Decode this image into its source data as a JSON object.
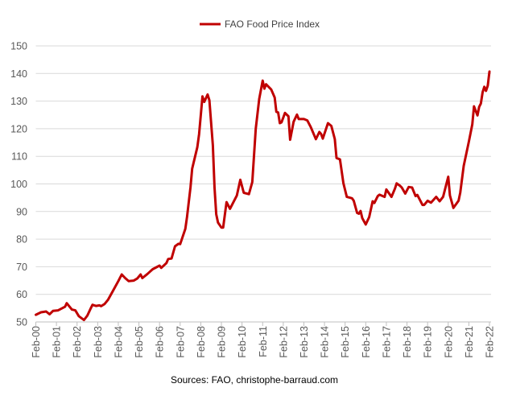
{
  "chart_data": {
    "type": "line",
    "title": "",
    "xlabel": "",
    "ylabel": "",
    "ylim": [
      50,
      150
    ],
    "yticks": [
      "50",
      "60",
      "70",
      "80",
      "90",
      "100",
      "110",
      "120",
      "130",
      "140",
      "150"
    ],
    "xticks": [
      "Feb-00",
      "Feb-01",
      "Feb-02",
      "Feb-03",
      "Feb-04",
      "Feb-05",
      "Feb-06",
      "Feb-07",
      "Feb-08",
      "Feb-09",
      "Feb-10",
      "Feb-11",
      "Feb-12",
      "Feb-13",
      "Feb-14",
      "Feb-15",
      "Feb-16",
      "Feb-17",
      "Feb-18",
      "Feb-19",
      "Feb-20",
      "Feb-21",
      "Feb-22"
    ],
    "xlim": [
      "2000-02",
      "2022-02"
    ],
    "grid": "horizontal",
    "legend_position": "top",
    "source": "Sources: FAO, christophe-barraud.com",
    "series": [
      {
        "name": "FAO Food Price Index",
        "color": "#c00000",
        "x": [
          "2000-02",
          "2000-05",
          "2000-08",
          "2000-10",
          "2000-12",
          "2001-03",
          "2001-07",
          "2001-08",
          "2001-11",
          "2002-01",
          "2002-03",
          "2002-06",
          "2002-08",
          "2002-10",
          "2002-11",
          "2003-01",
          "2003-03",
          "2003-04",
          "2003-06",
          "2003-08",
          "2003-11",
          "2004-02",
          "2004-04",
          "2004-06",
          "2004-08",
          "2004-11",
          "2005-01",
          "2005-03",
          "2005-04",
          "2005-07",
          "2005-10",
          "2006-02",
          "2006-03",
          "2006-06",
          "2006-07",
          "2006-09",
          "2006-11",
          "2007-01",
          "2007-02",
          "2007-05",
          "2007-06",
          "2007-08",
          "2007-09",
          "2007-12",
          "2008-01",
          "2008-03",
          "2008-04",
          "2008-06",
          "2008-07",
          "2008-09",
          "2008-10",
          "2008-11",
          "2008-12",
          "2009-02",
          "2009-03",
          "2009-05",
          "2009-07",
          "2009-09",
          "2009-11",
          "2010-01",
          "2010-03",
          "2010-06",
          "2010-08",
          "2010-10",
          "2010-12",
          "2011-02",
          "2011-03",
          "2011-04",
          "2011-07",
          "2011-09",
          "2011-10",
          "2011-11",
          "2011-12",
          "2012-01",
          "2012-03",
          "2012-05",
          "2012-06",
          "2012-08",
          "2012-10",
          "2012-11",
          "2013-02",
          "2013-04",
          "2013-06",
          "2013-09",
          "2013-11",
          "2013-12",
          "2014-01",
          "2014-04",
          "2014-06",
          "2014-08",
          "2014-09",
          "2014-11",
          "2015-01",
          "2015-03",
          "2015-06",
          "2015-07",
          "2015-09",
          "2015-10",
          "2015-11",
          "2015-12",
          "2016-02",
          "2016-04",
          "2016-06",
          "2016-07",
          "2016-09",
          "2016-10",
          "2017-01",
          "2017-02",
          "2017-05",
          "2017-07",
          "2017-08",
          "2017-10",
          "2017-11",
          "2018-01",
          "2018-03",
          "2018-05",
          "2018-07",
          "2018-08",
          "2018-11",
          "2018-12",
          "2019-02",
          "2019-04",
          "2019-07",
          "2019-09",
          "2019-11",
          "2020-02",
          "2020-03",
          "2020-05",
          "2020-08",
          "2020-09",
          "2020-11",
          "2021-02",
          "2021-04",
          "2021-05",
          "2021-07",
          "2021-08",
          "2021-09",
          "2021-10",
          "2021-11",
          "2021-12",
          "2022-01",
          "2022-02"
        ],
        "y": [
          52.6,
          53.5,
          53.8,
          52.8,
          54,
          54.2,
          55.5,
          56.8,
          54.5,
          54.2,
          52.1,
          50.7,
          52.3,
          55,
          56.2,
          55.8,
          56,
          55.7,
          56.5,
          58,
          61.4,
          64.8,
          67.2,
          65.9,
          64.8,
          65,
          65.7,
          67.2,
          65.9,
          67.4,
          69.1,
          70.4,
          69.6,
          71.3,
          72.8,
          73,
          77.4,
          78.3,
          78.2,
          83.7,
          88,
          98.7,
          105.5,
          113.3,
          118,
          131.7,
          129.7,
          132.4,
          130.3,
          114,
          98.6,
          89,
          86,
          84.2,
          84.2,
          93.4,
          91,
          93.4,
          95.8,
          101.5,
          96.8,
          96.3,
          100.7,
          120,
          130.8,
          137.4,
          134.5,
          136.1,
          134.2,
          131.3,
          126.1,
          125.9,
          122,
          122.3,
          125.7,
          124.5,
          116,
          122.5,
          125.1,
          123.5,
          123.5,
          123,
          120.6,
          116.2,
          118.8,
          118.1,
          116.4,
          122,
          121,
          116.2,
          109.4,
          108.9,
          100.2,
          95.3,
          94.8,
          93.9,
          89.5,
          89.2,
          90.2,
          87.6,
          85.3,
          88,
          93.7,
          93.1,
          95.6,
          96.1,
          95.3,
          98,
          95.3,
          98.3,
          100.2,
          99.3,
          98.7,
          96.5,
          98.9,
          98.7,
          95.6,
          96,
          92.4,
          92.4,
          93.9,
          93.2,
          95.3,
          93.7,
          95.3,
          102.6,
          95.8,
          91.3,
          93.9,
          96.8,
          106.5,
          115.3,
          121.6,
          128.1,
          124.8,
          127.9,
          129.1,
          133.2,
          135.2,
          133.7,
          135.6,
          140.7
        ]
      }
    ]
  }
}
